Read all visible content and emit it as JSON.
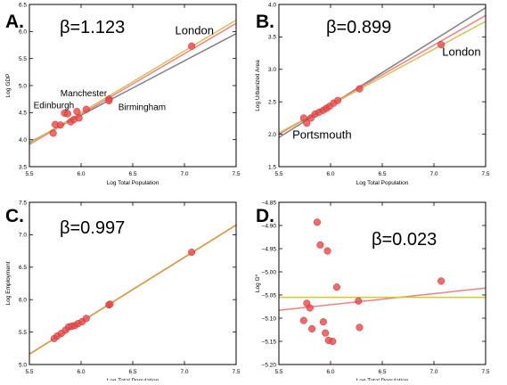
{
  "chart_data": [
    {
      "type": "scatter",
      "panel_letter": "A.",
      "beta": "β=1.123",
      "xlabel": "Log Total Population",
      "ylabel": "Log GDP",
      "xlim": [
        5.5,
        7.5
      ],
      "ylim": [
        3.5,
        6.5
      ],
      "xticks": [
        "5.5",
        "6.0",
        "6.5",
        "7.0",
        "7.5"
      ],
      "yticks": [
        "3.5",
        "4.0",
        "4.5",
        "5.0",
        "5.5",
        "6.0",
        "6.5"
      ],
      "grid": false,
      "points": [
        {
          "x": 5.73,
          "y": 4.12
        },
        {
          "x": 5.75,
          "y": 4.28
        },
        {
          "x": 5.8,
          "y": 4.27
        },
        {
          "x": 5.84,
          "y": 4.49
        },
        {
          "x": 5.87,
          "y": 4.48
        },
        {
          "x": 5.9,
          "y": 4.33
        },
        {
          "x": 5.93,
          "y": 4.37
        },
        {
          "x": 5.96,
          "y": 4.52
        },
        {
          "x": 5.98,
          "y": 4.4
        },
        {
          "x": 6.05,
          "y": 4.56
        },
        {
          "x": 6.27,
          "y": 4.75
        },
        {
          "x": 6.27,
          "y": 4.72
        },
        {
          "x": 7.07,
          "y": 5.73
        }
      ],
      "lines": [
        {
          "color": "#808080",
          "x": [
            5.5,
            7.5
          ],
          "y": [
            3.95,
            5.96
          ]
        },
        {
          "color": "#f08080",
          "x": [
            5.5,
            7.5
          ],
          "y": [
            3.91,
            6.15
          ]
        },
        {
          "color": "#d4c060",
          "x": [
            5.5,
            7.5
          ],
          "y": [
            3.93,
            6.21
          ]
        }
      ],
      "annotations": [
        {
          "text": "London",
          "x": 6.91,
          "y": 5.95,
          "size": 13
        },
        {
          "text": "Manchester",
          "x": 5.8,
          "y": 4.8,
          "size": 10
        },
        {
          "text": "Edinburgh",
          "x": 5.54,
          "y": 4.58,
          "size": 10
        },
        {
          "text": "Birmingham",
          "x": 6.36,
          "y": 4.55,
          "size": 10
        }
      ]
    },
    {
      "type": "scatter",
      "panel_letter": "B.",
      "beta": "β=0.899",
      "xlabel": "Log Total Population",
      "ylabel": "Log Urbanized Area",
      "xlim": [
        5.5,
        7.5
      ],
      "ylim": [
        1.5,
        4.0
      ],
      "xticks": [
        "5.5",
        "6.0",
        "6.5",
        "7.0",
        "7.5"
      ],
      "yticks": [
        "1.5",
        "2.0",
        "2.5",
        "3.0",
        "3.5",
        "4.0"
      ],
      "grid": false,
      "points": [
        {
          "x": 5.74,
          "y": 2.25
        },
        {
          "x": 5.77,
          "y": 2.17
        },
        {
          "x": 5.81,
          "y": 2.25
        },
        {
          "x": 5.85,
          "y": 2.31
        },
        {
          "x": 5.89,
          "y": 2.34
        },
        {
          "x": 5.93,
          "y": 2.37
        },
        {
          "x": 5.96,
          "y": 2.4
        },
        {
          "x": 5.99,
          "y": 2.43
        },
        {
          "x": 6.03,
          "y": 2.48
        },
        {
          "x": 6.07,
          "y": 2.52
        },
        {
          "x": 6.28,
          "y": 2.7
        },
        {
          "x": 7.07,
          "y": 3.38
        }
      ],
      "lines": [
        {
          "color": "#808080",
          "x": [
            5.5,
            7.5
          ],
          "y": [
            1.95,
            3.95
          ]
        },
        {
          "color": "#f08080",
          "x": [
            5.5,
            7.5
          ],
          "y": [
            2.0,
            3.83
          ]
        },
        {
          "color": "#d4c060",
          "x": [
            5.5,
            7.5
          ],
          "y": [
            2.02,
            3.74
          ]
        }
      ],
      "annotations": [
        {
          "text": "London",
          "x": 7.08,
          "y": 3.21,
          "size": 13
        },
        {
          "text": "Portsmouth",
          "x": 5.63,
          "y": 1.93,
          "size": 13
        }
      ]
    },
    {
      "type": "scatter",
      "panel_letter": "C.",
      "beta": "β=0.997",
      "xlabel": "Log Total Population",
      "ylabel": "Log Employment",
      "xlim": [
        5.5,
        7.5
      ],
      "ylim": [
        5.0,
        7.5
      ],
      "xticks": [
        "5.5",
        "6.0",
        "6.5",
        "7.0",
        "7.5"
      ],
      "yticks": [
        "5.0",
        "5.5",
        "6.0",
        "6.5",
        "7.0",
        "7.5"
      ],
      "grid": false,
      "points": [
        {
          "x": 5.74,
          "y": 5.4
        },
        {
          "x": 5.77,
          "y": 5.44
        },
        {
          "x": 5.81,
          "y": 5.48
        },
        {
          "x": 5.85,
          "y": 5.53
        },
        {
          "x": 5.88,
          "y": 5.58
        },
        {
          "x": 5.91,
          "y": 5.59
        },
        {
          "x": 5.94,
          "y": 5.6
        },
        {
          "x": 5.97,
          "y": 5.63
        },
        {
          "x": 6.01,
          "y": 5.66
        },
        {
          "x": 6.05,
          "y": 5.71
        },
        {
          "x": 6.27,
          "y": 5.92
        },
        {
          "x": 6.28,
          "y": 5.93
        },
        {
          "x": 7.07,
          "y": 6.73
        }
      ],
      "lines": [
        {
          "color": "#808080",
          "x": [
            5.5,
            7.5
          ],
          "y": [
            5.16,
            7.15
          ]
        },
        {
          "color": "#f08080",
          "x": [
            5.5,
            7.5
          ],
          "y": [
            5.16,
            7.15
          ]
        },
        {
          "color": "#d4a040",
          "x": [
            5.5,
            7.5
          ],
          "y": [
            5.16,
            7.15
          ]
        }
      ],
      "annotations": []
    },
    {
      "type": "scatter",
      "panel_letter": "D.",
      "beta": "β=0.023",
      "xlabel": "Log Total Population",
      "ylabel": "Log G*",
      "xlim": [
        5.5,
        7.5
      ],
      "ylim": [
        -5.2,
        -4.85
      ],
      "xticks": [
        "5.5",
        "6.0",
        "6.5",
        "7.0",
        "7.5"
      ],
      "yticks": [
        "−5.20",
        "−5.15",
        "−5.10",
        "−5.05",
        "−5.00",
        "−4.95",
        "−4.90",
        "−4.85"
      ],
      "grid": false,
      "points": [
        {
          "x": 5.74,
          "y": -5.105
        },
        {
          "x": 5.77,
          "y": -5.068
        },
        {
          "x": 5.8,
          "y": -5.078
        },
        {
          "x": 5.82,
          "y": -5.123
        },
        {
          "x": 5.87,
          "y": -4.893
        },
        {
          "x": 5.9,
          "y": -4.942
        },
        {
          "x": 5.93,
          "y": -5.108
        },
        {
          "x": 5.95,
          "y": -5.132
        },
        {
          "x": 5.97,
          "y": -4.955
        },
        {
          "x": 5.98,
          "y": -5.148
        },
        {
          "x": 6.02,
          "y": -5.15
        },
        {
          "x": 6.06,
          "y": -5.033
        },
        {
          "x": 6.27,
          "y": -5.063
        },
        {
          "x": 6.28,
          "y": -5.12
        },
        {
          "x": 7.07,
          "y": -5.02
        }
      ],
      "lines": [
        {
          "color": "#f08080",
          "x": [
            5.5,
            7.5
          ],
          "y": [
            -5.083,
            -5.035
          ]
        },
        {
          "color": "#cccc33",
          "x": [
            5.5,
            7.5
          ],
          "y": [
            -5.055,
            -5.055
          ]
        }
      ],
      "annotations": []
    }
  ]
}
